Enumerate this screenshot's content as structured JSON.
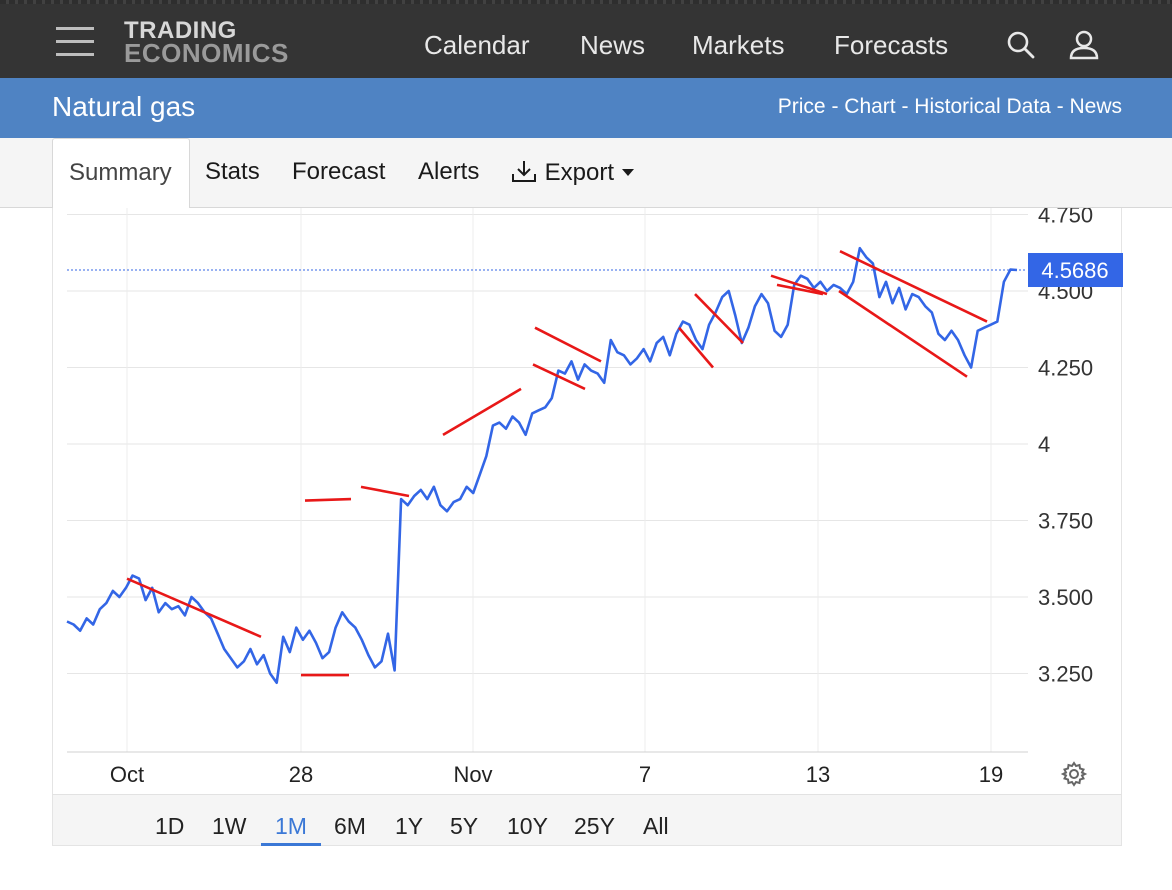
{
  "header": {
    "logo_line1": "TRADING",
    "logo_line2": "ECONOMICS",
    "nav": [
      "Calendar",
      "News",
      "Markets",
      "Forecasts"
    ]
  },
  "subheader": {
    "title": "Natural gas",
    "links": "Price - Chart - Historical Data - News"
  },
  "tabs": {
    "summary": "Summary",
    "stats": "Stats",
    "forecast": "Forecast",
    "alerts": "Alerts",
    "export": "Export"
  },
  "ranges": [
    "1D",
    "1W",
    "1M",
    "6M",
    "1Y",
    "5Y",
    "10Y",
    "25Y",
    "All"
  ],
  "active_range": "1M",
  "colors": {
    "line": "#3366e6",
    "trend": "#e81818",
    "price_label_bg": "#3366e6"
  },
  "chart_data": {
    "type": "line",
    "title": "",
    "y_ticks": [
      "4.750",
      "4.250",
      "4",
      "3.750",
      "3.500",
      "3.250"
    ],
    "x_ticks": [
      "Oct",
      "28",
      "Nov",
      "7",
      "13",
      "19"
    ],
    "ylim": [
      3.0,
      4.77
    ],
    "last_price_label": "4.5686",
    "last_price": 4.5686,
    "grid": true,
    "series": [
      {
        "values": [
          3.42,
          3.41,
          3.39,
          3.43,
          3.41,
          3.46,
          3.48,
          3.52,
          3.5,
          3.53,
          3.57,
          3.56,
          3.49,
          3.53,
          3.45,
          3.48,
          3.46,
          3.47,
          3.44,
          3.5,
          3.48,
          3.45,
          3.43,
          3.38,
          3.33,
          3.3,
          3.27,
          3.29,
          3.33,
          3.28,
          3.31,
          3.25,
          3.22,
          3.37,
          3.32,
          3.4,
          3.36,
          3.39,
          3.35,
          3.3,
          3.32,
          3.4,
          3.45,
          3.42,
          3.4,
          3.36,
          3.31,
          3.27,
          3.29,
          3.38,
          3.26,
          3.82,
          3.8,
          3.83,
          3.85,
          3.82,
          3.86,
          3.8,
          3.78,
          3.81,
          3.82,
          3.86,
          3.84,
          3.9,
          3.96,
          4.06,
          4.07,
          4.05,
          4.09,
          4.07,
          4.03,
          4.1,
          4.11,
          4.12,
          4.15,
          4.24,
          4.23,
          4.27,
          4.21,
          4.26,
          4.24,
          4.23,
          4.2,
          4.34,
          4.3,
          4.29,
          4.26,
          4.28,
          4.31,
          4.27,
          4.33,
          4.35,
          4.29,
          4.36,
          4.4,
          4.39,
          4.34,
          4.31,
          4.39,
          4.43,
          4.48,
          4.5,
          4.42,
          4.33,
          4.38,
          4.45,
          4.49,
          4.46,
          4.37,
          4.35,
          4.39,
          4.52,
          4.55,
          4.54,
          4.51,
          4.53,
          4.5,
          4.52,
          4.51,
          4.49,
          4.53,
          4.64,
          4.61,
          4.59,
          4.48,
          4.53,
          4.46,
          4.51,
          4.44,
          4.49,
          4.48,
          4.45,
          4.43,
          4.36,
          4.34,
          4.37,
          4.34,
          4.29,
          4.25,
          4.37,
          4.38,
          4.39,
          4.4,
          4.53,
          4.57,
          4.5686
        ]
      }
    ]
  }
}
